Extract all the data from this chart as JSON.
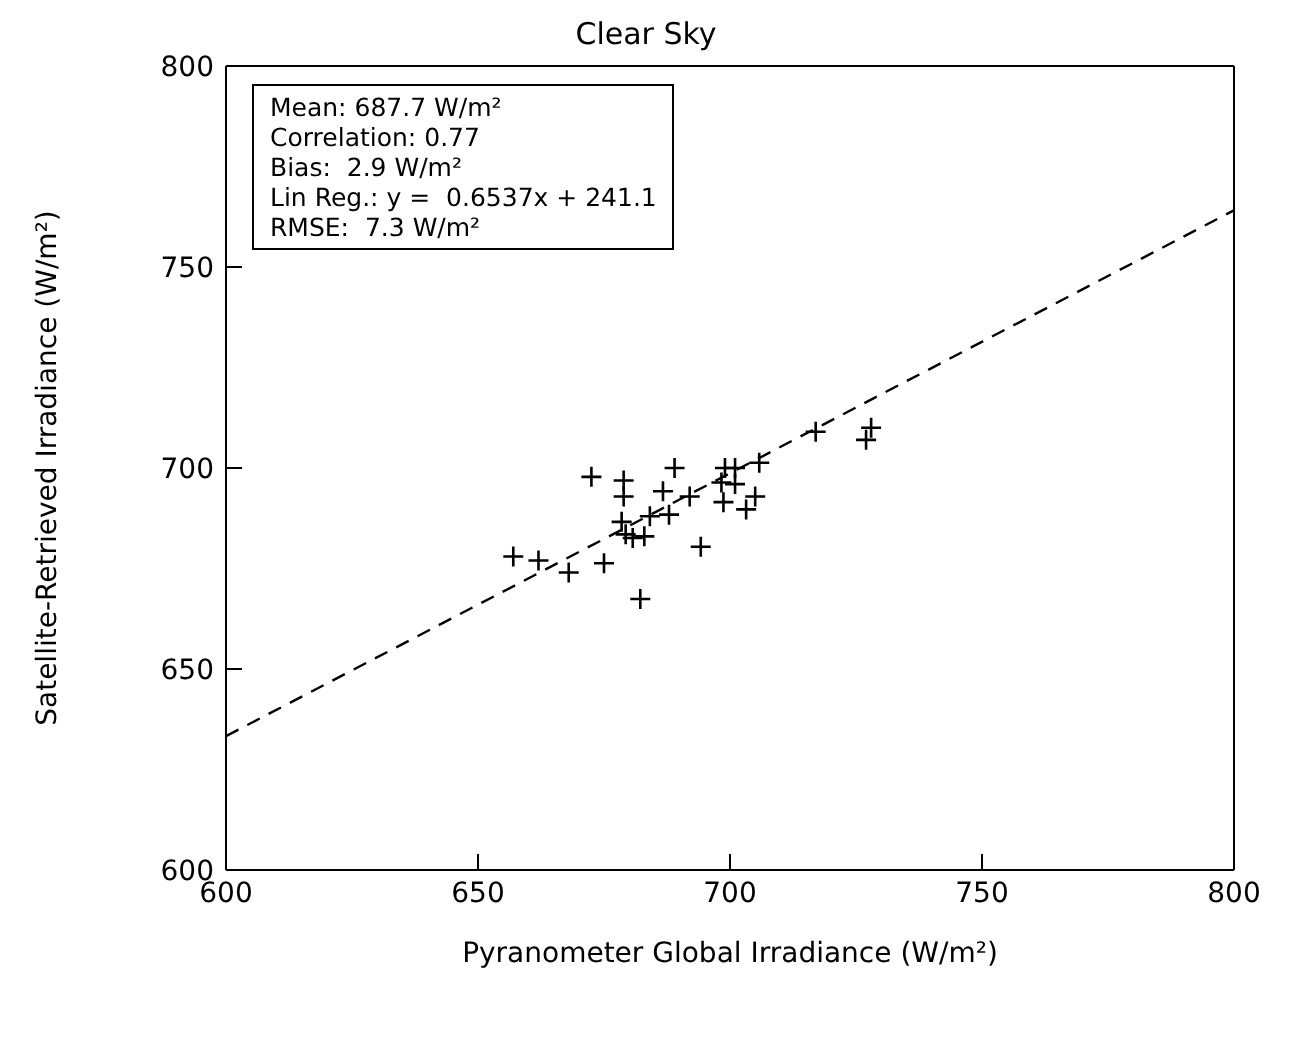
{
  "chart_data": {
    "type": "scatter",
    "title": "Clear Sky",
    "xlabel": "Pyranometer Global Irradiance (W/m²)",
    "ylabel": "Satellite-Retrieved Irradiance (W/m²)",
    "annotations": [
      "Mean: 687.7 W/m²",
      "Correlation: 0.77",
      "Bias:  2.9 W/m²",
      "Lin Reg.: y =  0.6537x + 241.1",
      "RMSE:  7.3 W/m²"
    ],
    "xlim": [
      600,
      800
    ],
    "ylim": [
      600,
      800
    ],
    "xticks": [
      600,
      650,
      700,
      750,
      800
    ],
    "yticks": [
      600,
      650,
      700,
      750,
      800
    ],
    "series": [
      {
        "marker": "cross",
        "color": "#000000",
        "x": [
          657,
          662,
          668,
          672.5,
          675,
          678.9,
          678.9,
          689,
          686.7,
          692,
          684.1,
          687.9,
          678.5,
          679.3,
          680.7,
          683,
          682.2,
          694.2,
          699,
          701,
          698.3,
          701,
          705.8,
          698.7,
          705,
          703.2,
          717,
          727,
          728
        ],
        "values": [
          678,
          677,
          674,
          697.8,
          676.3,
          696.9,
          692.9,
          700,
          694.2,
          692.9,
          688,
          688.4,
          686.6,
          683.5,
          682.6,
          683,
          667.4,
          680.4,
          700,
          700,
          696.4,
          696,
          701.3,
          691.5,
          692.9,
          689.7,
          709,
          707,
          710
        ]
      },
      {
        "type": "line",
        "line_style": "dashed",
        "marker": "none",
        "color": "#000000",
        "x": [
          600,
          800
        ],
        "values": [
          633.3,
          764.1
        ]
      }
    ]
  }
}
